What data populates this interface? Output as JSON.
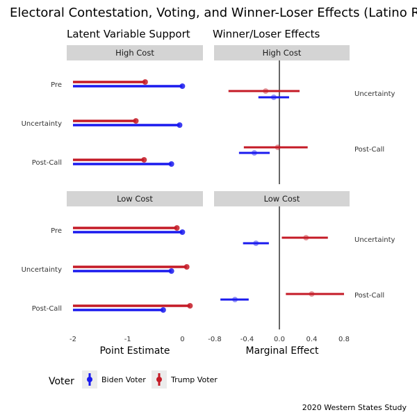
{
  "title": "Electoral Contestation, Voting, and Winner-Loser Effects (Latino Respondents)",
  "caption": "2020 Western States Study",
  "colors": {
    "biden": "#1a1aee",
    "trump": "#c41a26",
    "strip": "#d4d4d4"
  },
  "chart_data": [
    {
      "type": "dot-range",
      "subtitle": "Latent Variable Support",
      "xlabel": "Point Estimate",
      "xlim": [
        -2,
        0.3
      ],
      "xticks": [
        -2,
        -1,
        0
      ],
      "categories": [
        "Pre",
        "Uncertainty",
        "Post-Call"
      ],
      "panels": [
        {
          "strip": "High Cost",
          "series": [
            {
              "name": "Trump Voter",
              "values": [
                -0.68,
                -0.85,
                -0.7
              ]
            },
            {
              "name": "Biden Voter",
              "values": [
                0.0,
                -0.05,
                -0.2
              ]
            }
          ]
        },
        {
          "strip": "Low Cost",
          "series": [
            {
              "name": "Trump Voter",
              "values": [
                -0.1,
                0.08,
                0.14
              ]
            },
            {
              "name": "Biden Voter",
              "values": [
                0.0,
                -0.2,
                -0.35
              ]
            }
          ]
        }
      ]
    },
    {
      "type": "dot-whisker",
      "subtitle": "Winner/Loser Effects",
      "xlabel": "Marginal Effect",
      "xlim": [
        -0.8,
        0.8
      ],
      "xticks": [
        -0.8,
        -0.4,
        0.0,
        0.4,
        0.8
      ],
      "categories": [
        "Uncertainty",
        "Post-Call"
      ],
      "panels": [
        {
          "strip": "High Cost",
          "series": [
            {
              "name": "Trump Voter",
              "estimates": [
                -0.17,
                -0.02
              ],
              "lower": [
                -0.63,
                -0.44
              ],
              "upper": [
                0.25,
                0.35
              ]
            },
            {
              "name": "Biden Voter",
              "estimates": [
                -0.07,
                -0.31
              ],
              "lower": [
                -0.26,
                -0.5
              ],
              "upper": [
                0.12,
                -0.12
              ]
            }
          ]
        },
        {
          "strip": "Low Cost",
          "series": [
            {
              "name": "Trump Voter",
              "estimates": [
                0.33,
                0.4
              ],
              "lower": [
                0.03,
                0.08
              ],
              "upper": [
                0.6,
                0.8
              ]
            },
            {
              "name": "Biden Voter",
              "estimates": [
                -0.29,
                -0.55
              ],
              "lower": [
                -0.45,
                -0.73
              ],
              "upper": [
                -0.13,
                -0.38
              ]
            }
          ]
        }
      ]
    }
  ],
  "legend": {
    "title": "Voter",
    "items": [
      "Biden Voter",
      "Trump Voter"
    ]
  }
}
